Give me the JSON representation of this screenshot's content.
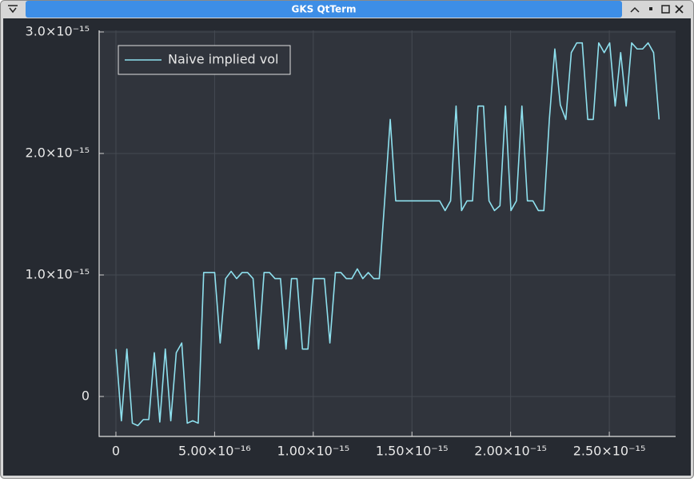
{
  "window_title": "GKS QtTerm",
  "chart_data": {
    "type": "line",
    "x": [
      0,
      2.78e-17,
      5.56e-17,
      8.34e-17,
      1.112e-16,
      1.39e-16,
      1.668e-16,
      1.946e-16,
      2.224e-16,
      2.502e-16,
      2.78e-16,
      3.058e-16,
      3.336e-16,
      3.614e-16,
      3.892e-16,
      4.17e-16,
      4.448e-16,
      4.726e-16,
      5.004e-16,
      5.282e-16,
      5.56e-16,
      5.838e-16,
      6.116e-16,
      6.394e-16,
      6.672e-16,
      6.95e-16,
      7.228e-16,
      7.506e-16,
      7.784e-16,
      8.062e-16,
      8.34e-16,
      8.618e-16,
      8.896e-16,
      9.174e-16,
      9.452e-16,
      9.73e-16,
      1.0008e-15,
      1.0286e-15,
      1.0564e-15,
      1.0842e-15,
      1.112e-15,
      1.1398e-15,
      1.1676e-15,
      1.1954e-15,
      1.2232e-15,
      1.251e-15,
      1.2788e-15,
      1.3066e-15,
      1.3344e-15,
      1.3622e-15,
      1.39e-15,
      1.4178e-15,
      1.4456e-15,
      1.4734e-15,
      1.5012e-15,
      1.529e-15,
      1.5568e-15,
      1.5846e-15,
      1.6124e-15,
      1.6402e-15,
      1.668e-15,
      1.6958e-15,
      1.7236e-15,
      1.7514e-15,
      1.7792e-15,
      1.807e-15,
      1.8348e-15,
      1.8626e-15,
      1.8904e-15,
      1.9182e-15,
      1.946e-15,
      1.9738e-15,
      2.0016e-15,
      2.0294e-15,
      2.0572e-15,
      2.085e-15,
      2.1128e-15,
      2.1406e-15,
      2.1684e-15,
      2.1962e-15,
      2.224e-15,
      2.2518e-15,
      2.2796e-15,
      2.3074e-15,
      2.3352e-15,
      2.363e-15,
      2.3908e-15,
      2.4186e-15,
      2.4464e-15,
      2.4742e-15,
      2.502e-15,
      2.5298e-15,
      2.5576e-15,
      2.5854e-15,
      2.6132e-15,
      2.641e-15,
      2.6688e-15,
      2.6966e-15,
      2.7244e-15,
      2.7522e-15
    ],
    "series": [
      {
        "name": "Naive implied vol",
        "color": "#8ee0ee",
        "values": [
          3.9e-16,
          -2e-16,
          3.9e-16,
          -2.2e-16,
          -2.4e-16,
          -1.9e-16,
          -1.9e-16,
          3.6e-16,
          -2.1e-16,
          3.9e-16,
          -2e-16,
          3.6e-16,
          4.4e-16,
          -2.2e-16,
          -2e-16,
          -2.2e-16,
          1.02e-15,
          1.02e-15,
          1.02e-15,
          4.4e-16,
          9.7e-16,
          1.03e-15,
          9.7e-16,
          1.02e-15,
          1.02e-15,
          9.7e-16,
          3.9e-16,
          1.02e-15,
          1.02e-15,
          9.7e-16,
          9.7e-16,
          3.9e-16,
          9.7e-16,
          9.7e-16,
          3.9e-16,
          3.9e-16,
          9.7e-16,
          9.7e-16,
          9.7e-16,
          4.4e-16,
          1.02e-15,
          1.02e-15,
          9.7e-16,
          9.7e-16,
          1.05e-15,
          9.7e-16,
          1.02e-15,
          9.7e-16,
          9.7e-16,
          1.62e-15,
          2.28e-15,
          1.61e-15,
          1.61e-15,
          1.61e-15,
          1.61e-15,
          1.61e-15,
          1.61e-15,
          1.61e-15,
          1.61e-15,
          1.61e-15,
          1.53e-15,
          1.61e-15,
          2.39e-15,
          1.53e-15,
          1.61e-15,
          1.61e-15,
          2.39e-15,
          2.39e-15,
          1.61e-15,
          1.53e-15,
          1.57e-15,
          2.39e-15,
          1.53e-15,
          1.61e-15,
          2.39e-15,
          1.61e-15,
          1.61e-15,
          1.53e-15,
          1.53e-15,
          2.28e-15,
          2.86e-15,
          2.4e-15,
          2.28e-15,
          2.83e-15,
          2.91e-15,
          2.91e-15,
          2.28e-15,
          2.28e-15,
          2.91e-15,
          2.83e-15,
          2.91e-15,
          2.39e-15,
          2.83e-15,
          2.39e-15,
          2.91e-15,
          2.86e-15,
          2.86e-15,
          2.91e-15,
          2.83e-15,
          2.28e-15
        ]
      }
    ],
    "xlim": [
      -8.5e-17,
      2.836e-15
    ],
    "ylim": [
      -3.29e-16,
      3.013e-15
    ],
    "xticks": [
      0,
      {
        "value": 5e-16,
        "label": "5.00×10⁻¹⁶"
      },
      {
        "value": 1e-15,
        "label": "1.00×10⁻¹⁵"
      },
      {
        "value": 1.5e-15,
        "label": "1.50×10⁻¹⁵"
      },
      {
        "value": 2e-15,
        "label": "2.00×10⁻¹⁵"
      },
      {
        "value": 2.5e-15,
        "label": "2.50×10⁻¹⁵"
      }
    ],
    "yticks": [
      0,
      {
        "value": 1e-15,
        "label": "1.0×10⁻¹⁵"
      },
      {
        "value": 2e-15,
        "label": "2.0×10⁻¹⁵"
      },
      {
        "value": 3e-15,
        "label": "3.0×10⁻¹⁵"
      }
    ],
    "grid": true,
    "legend": "top-left"
  }
}
